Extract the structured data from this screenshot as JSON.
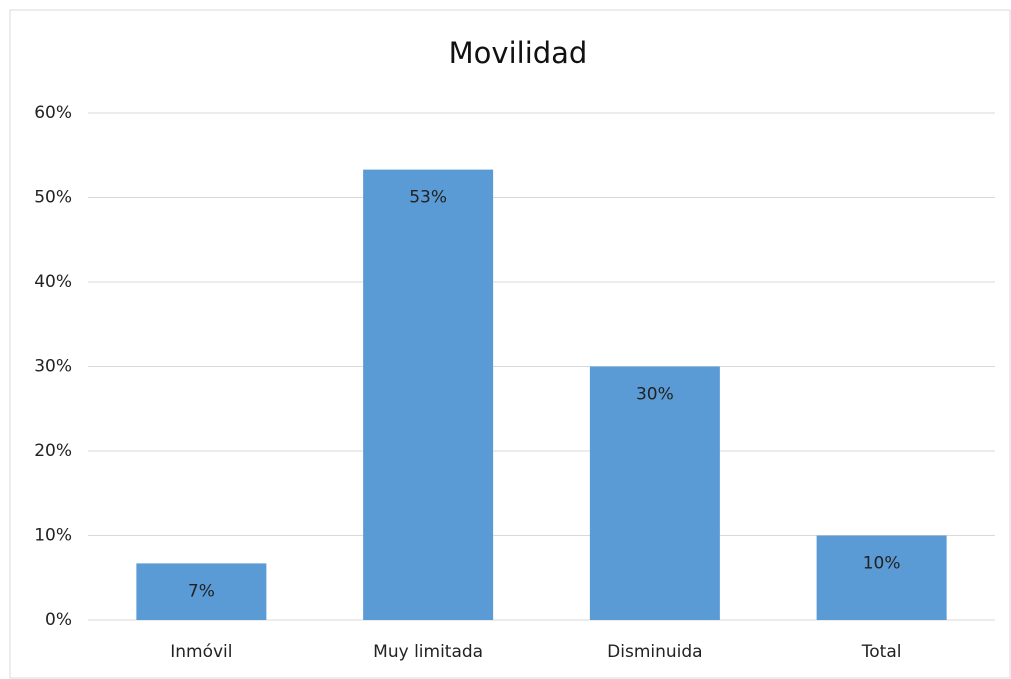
{
  "chart_data": {
    "type": "bar",
    "title": "Movilidad",
    "categories": [
      "Inmóvil",
      "Muy limitada",
      "Disminuida",
      "Total"
    ],
    "values": [
      6.7,
      53.3,
      30,
      10
    ],
    "value_labels": [
      "7%",
      "53%",
      "30%",
      "10%"
    ],
    "color": "#5b9bd5",
    "ylim": [
      0,
      60
    ],
    "yticks": [
      {
        "value": 0,
        "label": "0%"
      },
      {
        "value": 10,
        "label": "10%"
      },
      {
        "value": 20,
        "label": "20%"
      },
      {
        "value": 30,
        "label": "30%"
      },
      {
        "value": 40,
        "label": "40%"
      },
      {
        "value": 50,
        "label": "50%"
      },
      {
        "value": 60,
        "label": "60%"
      }
    ],
    "grid": true
  }
}
